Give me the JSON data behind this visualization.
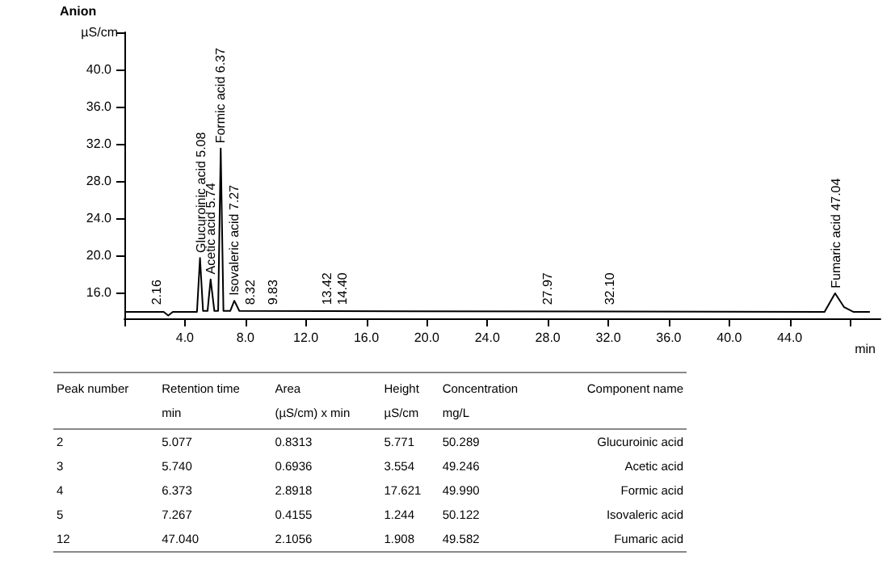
{
  "chart_data": {
    "type": "line",
    "title": "Anion",
    "xlabel": "min",
    "ylabel": "µS/cm",
    "xlim": [
      0,
      50
    ],
    "xticks": [
      {
        "value": 0,
        "label": null
      },
      {
        "value": 4,
        "label": "4.0"
      },
      {
        "value": 8,
        "label": "8.0"
      },
      {
        "value": 12,
        "label": "12.0"
      },
      {
        "value": 16,
        "label": "16.0"
      },
      {
        "value": 20,
        "label": "20.0"
      },
      {
        "value": 24,
        "label": "24.0"
      },
      {
        "value": 28,
        "label": "28.0"
      },
      {
        "value": 32,
        "label": "32.0"
      },
      {
        "value": 36,
        "label": "36.0"
      },
      {
        "value": 40,
        "label": "40.0"
      },
      {
        "value": 44,
        "label": "44.0"
      },
      {
        "value": 48,
        "label": null
      }
    ],
    "ylim": [
      13.2,
      44
    ],
    "yticks": [
      {
        "value": 16,
        "label": "16.0"
      },
      {
        "value": 20,
        "label": "20.0"
      },
      {
        "value": 24,
        "label": "24.0"
      },
      {
        "value": 28,
        "label": "28.0"
      },
      {
        "value": 32,
        "label": "32.0"
      },
      {
        "value": 36,
        "label": "36.0"
      },
      {
        "value": 40,
        "label": "40.0"
      },
      {
        "value": 44,
        "label": null
      }
    ],
    "grid": false,
    "marker": "none",
    "line_style": "solid",
    "series": [
      {
        "color": "#000000",
        "x": [
          0,
          2.3,
          2.6,
          2.9,
          3.2,
          4.8,
          5.0,
          5.2,
          5.5,
          5.7,
          5.95,
          6.2,
          6.37,
          6.55,
          7.0,
          7.27,
          7.6,
          46.3,
          47.0,
          47.6,
          48.2,
          49.3
        ],
        "values": [
          13.9,
          13.9,
          13.9,
          13.5,
          13.9,
          13.9,
          19.7,
          14.0,
          14.0,
          17.4,
          14.0,
          14.0,
          31.5,
          14.0,
          14.0,
          15.1,
          14.0,
          13.9,
          15.9,
          14.4,
          13.9,
          13.9
        ]
      }
    ],
    "annotations": [
      {
        "text": "2.16",
        "x": 2.16,
        "y": 14.3
      },
      {
        "text": "Glucuroinic acid 5.08",
        "x": 5.08,
        "y": 19.9
      },
      {
        "text": "Acetic acid 5.74",
        "x": 5.74,
        "y": 17.6
      },
      {
        "text": "Formic acid 6.37",
        "x": 6.37,
        "y": 31.7
      },
      {
        "text": "Isovaleric acid 7.27",
        "x": 7.27,
        "y": 15.3
      },
      {
        "text": "8.32",
        "x": 8.32,
        "y": 14.3
      },
      {
        "text": "9.83",
        "x": 9.83,
        "y": 14.3
      },
      {
        "text": "13.42",
        "x": 13.42,
        "y": 14.3
      },
      {
        "text": "14.40",
        "x": 14.4,
        "y": 14.3
      },
      {
        "text": "27.97",
        "x": 27.97,
        "y": 14.3
      },
      {
        "text": "32.10",
        "x": 32.1,
        "y": 14.3
      },
      {
        "text": "Fumaric acid 47.04",
        "x": 47.04,
        "y": 16.1
      },
      "Peak number",
      "Retention time\nmin",
      "Area\n(µS/cm) x min",
      "Height\nµS/cm",
      "Concentration\nmg/L",
      "Component name",
      "2",
      "5.077",
      "0.8313",
      "5.771",
      "50.289",
      "Glucuroinic acid",
      "3",
      "5.740",
      "0.6936",
      "3.554",
      "49.246",
      "Acetic acid",
      "4",
      "6.373",
      "2.8918",
      "17.621",
      "49.990",
      "Formic acid",
      "5",
      "7.267",
      "0.4155",
      "1.244",
      "50.122",
      "Isovaleric acid",
      "12",
      "47.040",
      "2.1056",
      "1.908",
      "49.582",
      "Fumaric acid"
    ]
  }
}
